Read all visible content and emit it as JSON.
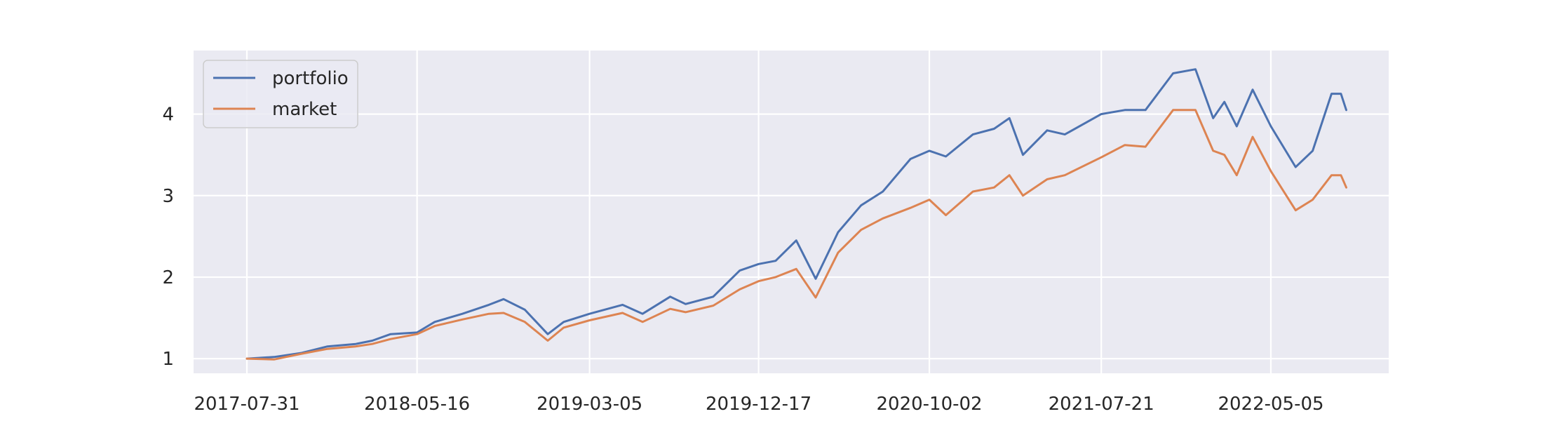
{
  "chart_data": {
    "type": "line",
    "title": "",
    "xlabel": "",
    "ylabel": "",
    "x_tick_labels": [
      "2017-07-31",
      "2018-05-16",
      "2019-03-05",
      "2019-12-17",
      "2020-10-02",
      "2021-07-21",
      "2022-05-05"
    ],
    "x_range": [
      "2017-07-31",
      "2022-09-10"
    ],
    "y_ticks": [
      1,
      2,
      3,
      4
    ],
    "ylim": [
      0.82,
      4.78
    ],
    "grid": true,
    "legend_position": "top-left",
    "series": [
      {
        "name": "portfolio",
        "color": "#4c72b0",
        "points": [
          [
            "2017-07-31",
            1.0
          ],
          [
            "2017-09-15",
            1.02
          ],
          [
            "2017-11-01",
            1.07
          ],
          [
            "2017-12-15",
            1.15
          ],
          [
            "2018-02-01",
            1.18
          ],
          [
            "2018-03-01",
            1.22
          ],
          [
            "2018-04-01",
            1.3
          ],
          [
            "2018-05-16",
            1.32
          ],
          [
            "2018-06-15",
            1.45
          ],
          [
            "2018-08-01",
            1.55
          ],
          [
            "2018-09-15",
            1.66
          ],
          [
            "2018-10-10",
            1.73
          ],
          [
            "2018-11-15",
            1.6
          ],
          [
            "2018-12-24",
            1.3
          ],
          [
            "2019-01-20",
            1.45
          ],
          [
            "2019-03-05",
            1.55
          ],
          [
            "2019-04-30",
            1.66
          ],
          [
            "2019-06-03",
            1.55
          ],
          [
            "2019-07-20",
            1.76
          ],
          [
            "2019-08-15",
            1.67
          ],
          [
            "2019-10-01",
            1.76
          ],
          [
            "2019-11-15",
            2.08
          ],
          [
            "2019-12-17",
            2.16
          ],
          [
            "2020-01-15",
            2.2
          ],
          [
            "2020-02-19",
            2.45
          ],
          [
            "2020-03-23",
            1.98
          ],
          [
            "2020-04-30",
            2.55
          ],
          [
            "2020-06-08",
            2.88
          ],
          [
            "2020-07-15",
            3.05
          ],
          [
            "2020-08-31",
            3.45
          ],
          [
            "2020-10-02",
            3.55
          ],
          [
            "2020-10-30",
            3.48
          ],
          [
            "2020-12-15",
            3.75
          ],
          [
            "2021-01-20",
            3.82
          ],
          [
            "2021-02-15",
            3.95
          ],
          [
            "2021-03-10",
            3.5
          ],
          [
            "2021-04-20",
            3.8
          ],
          [
            "2021-05-20",
            3.75
          ],
          [
            "2021-07-21",
            4.0
          ],
          [
            "2021-08-30",
            4.05
          ],
          [
            "2021-10-04",
            4.05
          ],
          [
            "2021-11-20",
            4.5
          ],
          [
            "2021-12-28",
            4.55
          ],
          [
            "2022-01-27",
            3.95
          ],
          [
            "2022-02-15",
            4.15
          ],
          [
            "2022-03-08",
            3.85
          ],
          [
            "2022-04-04",
            4.3
          ],
          [
            "2022-05-05",
            3.85
          ],
          [
            "2022-06-16",
            3.35
          ],
          [
            "2022-07-15",
            3.55
          ],
          [
            "2022-08-16",
            4.25
          ],
          [
            "2022-09-01",
            4.25
          ],
          [
            "2022-09-10",
            4.05
          ]
        ]
      },
      {
        "name": "market",
        "color": "#dd8452",
        "points": [
          [
            "2017-07-31",
            1.0
          ],
          [
            "2017-09-15",
            0.99
          ],
          [
            "2017-11-01",
            1.06
          ],
          [
            "2017-12-15",
            1.12
          ],
          [
            "2018-02-01",
            1.15
          ],
          [
            "2018-03-01",
            1.18
          ],
          [
            "2018-04-01",
            1.24
          ],
          [
            "2018-05-16",
            1.3
          ],
          [
            "2018-06-15",
            1.4
          ],
          [
            "2018-08-01",
            1.48
          ],
          [
            "2018-09-15",
            1.55
          ],
          [
            "2018-10-10",
            1.56
          ],
          [
            "2018-11-15",
            1.45
          ],
          [
            "2018-12-24",
            1.22
          ],
          [
            "2019-01-20",
            1.38
          ],
          [
            "2019-03-05",
            1.47
          ],
          [
            "2019-04-30",
            1.56
          ],
          [
            "2019-06-03",
            1.45
          ],
          [
            "2019-07-20",
            1.61
          ],
          [
            "2019-08-15",
            1.57
          ],
          [
            "2019-10-01",
            1.65
          ],
          [
            "2019-11-15",
            1.85
          ],
          [
            "2019-12-17",
            1.95
          ],
          [
            "2020-01-15",
            2.0
          ],
          [
            "2020-02-19",
            2.1
          ],
          [
            "2020-03-23",
            1.75
          ],
          [
            "2020-04-30",
            2.3
          ],
          [
            "2020-06-08",
            2.58
          ],
          [
            "2020-07-15",
            2.72
          ],
          [
            "2020-08-31",
            2.85
          ],
          [
            "2020-10-02",
            2.95
          ],
          [
            "2020-10-30",
            2.76
          ],
          [
            "2020-12-15",
            3.05
          ],
          [
            "2021-01-20",
            3.1
          ],
          [
            "2021-02-15",
            3.25
          ],
          [
            "2021-03-10",
            3.0
          ],
          [
            "2021-04-20",
            3.2
          ],
          [
            "2021-05-20",
            3.25
          ],
          [
            "2021-07-21",
            3.47
          ],
          [
            "2021-08-30",
            3.62
          ],
          [
            "2021-10-04",
            3.6
          ],
          [
            "2021-11-20",
            4.05
          ],
          [
            "2021-12-28",
            4.05
          ],
          [
            "2022-01-27",
            3.55
          ],
          [
            "2022-02-15",
            3.5
          ],
          [
            "2022-03-08",
            3.25
          ],
          [
            "2022-04-04",
            3.72
          ],
          [
            "2022-05-05",
            3.3
          ],
          [
            "2022-06-16",
            2.82
          ],
          [
            "2022-07-15",
            2.95
          ],
          [
            "2022-08-16",
            3.25
          ],
          [
            "2022-09-01",
            3.25
          ],
          [
            "2022-09-10",
            3.1
          ]
        ]
      }
    ]
  }
}
